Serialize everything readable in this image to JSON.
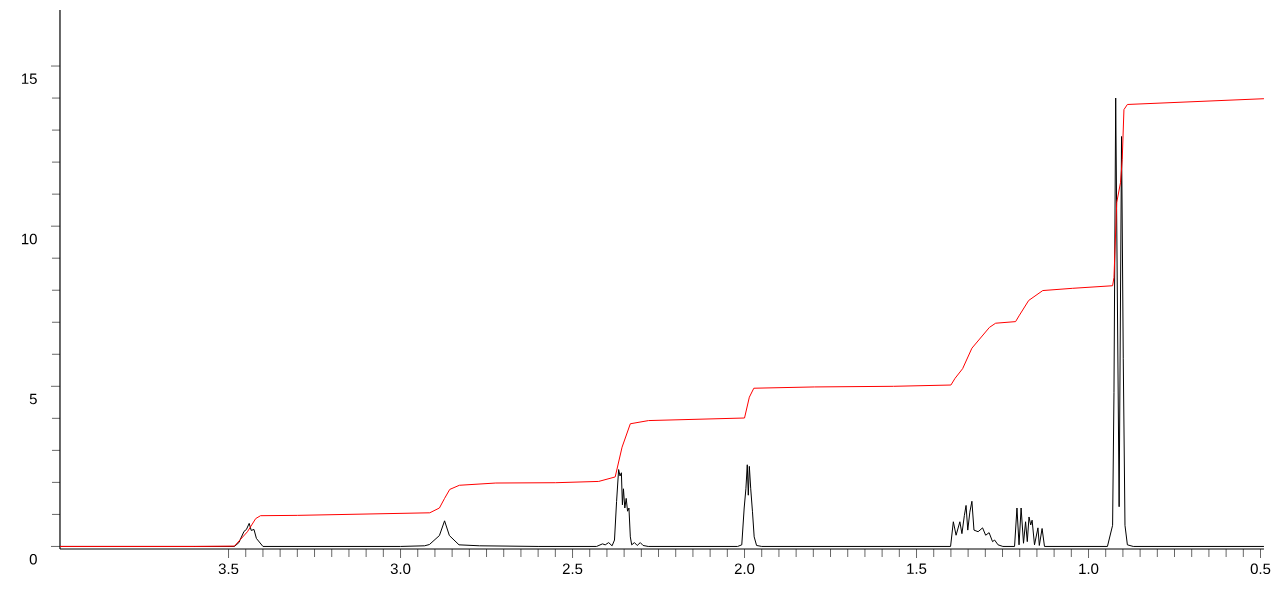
{
  "chart_data": {
    "type": "line",
    "xlim": [
      3.99,
      0.49
    ],
    "ylim": [
      -0.08,
      16.75
    ],
    "xticks": [
      3.5,
      {
        "value": 3,
        "label": "3.0"
      },
      2.5,
      {
        "value": 2,
        "label": "2.0"
      },
      1.5,
      {
        "value": 1,
        "label": "1.0"
      },
      0.5
    ],
    "yticks": [
      0,
      5,
      10,
      15
    ],
    "grid": false,
    "marker": "none",
    "line_style": "solid",
    "series": [
      {
        "color": "#000000",
        "x": [
          3.99,
          3.6,
          3.483,
          3.47,
          3.455,
          3.448,
          3.44,
          3.434,
          3.426,
          3.419,
          3.4,
          3.0,
          2.93,
          2.916,
          2.887,
          2.872,
          2.858,
          2.83,
          2.77,
          2.6,
          2.43,
          2.413,
          2.405,
          2.395,
          2.385,
          2.378,
          2.372,
          2.366,
          2.362,
          2.358,
          2.355,
          2.352,
          2.348,
          2.344,
          2.34,
          2.336,
          2.332,
          2.328,
          2.32,
          2.312,
          2.303,
          2.295,
          2.28,
          2.02,
          2.008,
          2.001,
          1.996,
          1.992,
          1.989,
          1.986,
          1.982,
          1.977,
          1.972,
          1.965,
          1.95,
          1.401,
          1.393,
          1.385,
          1.374,
          1.368,
          1.361,
          1.356,
          1.351,
          1.345,
          1.339,
          1.333,
          1.321,
          1.308,
          1.299,
          1.289,
          1.279,
          1.273,
          1.263,
          1.249,
          1.215,
          1.208,
          1.202,
          1.196,
          1.189,
          1.183,
          1.178,
          1.173,
          1.168,
          1.164,
          1.157,
          1.147,
          1.143,
          1.135,
          1.128,
          0.945,
          0.93,
          0.926,
          0.921,
          0.911,
          0.904,
          0.899,
          0.894,
          0.887,
          0.87,
          0.49
        ],
        "values": [
          0,
          0,
          0,
          0.12,
          0.47,
          0.53,
          0.72,
          0.5,
          0.53,
          0.25,
          0,
          0,
          0.02,
          0.06,
          0.34,
          0.8,
          0.34,
          0.05,
          0.02,
          0,
          0,
          0.08,
          0.05,
          0.12,
          0.02,
          0.2,
          1.4,
          2.4,
          2.2,
          2.3,
          1.3,
          1.8,
          1.2,
          1.5,
          1.1,
          1.2,
          0.3,
          0.05,
          0.12,
          0.03,
          0.12,
          0.03,
          0,
          0,
          0.05,
          1.2,
          1.8,
          2.55,
          1.6,
          2.5,
          1.8,
          1.1,
          0.3,
          0.03,
          0,
          0,
          0.77,
          0.35,
          0.77,
          0.4,
          0.96,
          1.28,
          0.51,
          1.07,
          1.41,
          0.51,
          0.46,
          0.58,
          0.35,
          0.43,
          0.15,
          0.2,
          0.05,
          0,
          0,
          1.2,
          0.05,
          1.2,
          0.1,
          0.77,
          0.15,
          0.92,
          0.67,
          0.82,
          0.05,
          0.58,
          0.03,
          0.56,
          0,
          0,
          0.66,
          4.8,
          14.0,
          1.24,
          12.8,
          5.86,
          0.66,
          0.05,
          0,
          0
        ]
      },
      {
        "color": "#ff0000",
        "x": [
          3.99,
          3.6,
          3.483,
          3.445,
          3.421,
          3.407,
          3.3,
          2.915,
          2.887,
          2.872,
          2.857,
          2.829,
          2.723,
          2.549,
          2.424,
          2.376,
          2.356,
          2.332,
          2.279,
          2.0,
          1.986,
          1.973,
          1.797,
          1.567,
          1.4,
          1.388,
          1.366,
          1.339,
          1.288,
          1.27,
          1.212,
          1.202,
          1.174,
          1.133,
          1.046,
          0.93,
          0.926,
          0.918,
          0.907,
          0.902,
          0.897,
          0.887,
          0.49
        ],
        "values": [
          0,
          0,
          0.01,
          0.46,
          0.87,
          0.96,
          0.97,
          1.05,
          1.2,
          1.5,
          1.78,
          1.91,
          1.98,
          1.99,
          2.03,
          2.17,
          3.1,
          3.83,
          3.93,
          4.01,
          4.66,
          4.94,
          4.98,
          5.0,
          5.04,
          5.25,
          5.55,
          6.19,
          6.84,
          6.97,
          7.02,
          7.2,
          7.68,
          7.99,
          8.06,
          8.14,
          8.4,
          10.74,
          11.36,
          12.08,
          13.64,
          13.8,
          13.98
        ]
      }
    ]
  }
}
